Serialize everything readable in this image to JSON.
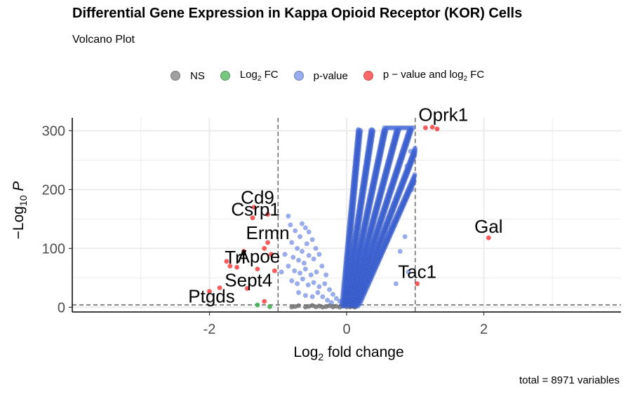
{
  "chart_data": {
    "type": "scatter",
    "title": "Differential Gene Expression in Kappa Opioid Receptor (KOR) Cells",
    "subtitle": "Volcano Plot",
    "caption": "total = 8971 variables",
    "xlabel": "Log2 fold change",
    "ylabel": "−Log10 P",
    "xlim": [
      -4,
      4
    ],
    "ylim": [
      -8,
      322
    ],
    "x_ticks": [
      -2,
      0,
      2
    ],
    "y_ticks": [
      0,
      100,
      200,
      300
    ],
    "x_cutoffs": [
      -1,
      1
    ],
    "y_cutoff": 4,
    "grid": true,
    "legend_position": "top",
    "series": [
      {
        "name": "NS",
        "color": "#808080"
      },
      {
        "name": "Log2 FC",
        "color": "#3cb04a"
      },
      {
        "name": "p-value",
        "color": "#4169e1"
      },
      {
        "name": "p − value and log2 FC",
        "color": "#ff0000"
      }
    ],
    "labeled_points": [
      {
        "gene": "Oprk1",
        "x": 1.15,
        "y": 305
      },
      {
        "gene": "Gal",
        "x": 2.07,
        "y": 118
      },
      {
        "gene": "Tac1",
        "x": 1.03,
        "y": 40
      },
      {
        "gene": "Cd9",
        "x": -1.35,
        "y": 170
      },
      {
        "gene": "Csrp1",
        "x": -1.37,
        "y": 152
      },
      {
        "gene": "Ermn",
        "x": -1.15,
        "y": 110
      },
      {
        "gene": "Apoe",
        "x": -1.3,
        "y": 65
      },
      {
        "gene": "Trf",
        "x": -1.6,
        "y": 68
      },
      {
        "gene": "Sept4",
        "x": -1.45,
        "y": 32
      },
      {
        "gene": "Ptgds",
        "x": -2.0,
        "y": 27
      }
    ],
    "red_points": [
      [
        1.15,
        305
      ],
      [
        1.25,
        306
      ],
      [
        1.32,
        303
      ],
      [
        2.07,
        118
      ],
      [
        1.03,
        40
      ],
      [
        -1.35,
        170
      ],
      [
        -1.37,
        152
      ],
      [
        -1.15,
        158
      ],
      [
        -1.15,
        110
      ],
      [
        -1.2,
        100
      ],
      [
        -1.5,
        95
      ],
      [
        -1.3,
        65
      ],
      [
        -1.6,
        68
      ],
      [
        -1.7,
        70
      ],
      [
        -1.75,
        78
      ],
      [
        -1.45,
        32
      ],
      [
        -2.0,
        27
      ],
      [
        -1.85,
        33
      ],
      [
        -1.2,
        10
      ],
      [
        -1.1,
        90
      ],
      [
        -1.05,
        62
      ]
    ],
    "green_points": [
      [
        -1.3,
        4
      ],
      [
        -1.12,
        1
      ]
    ],
    "gray_points": [
      [
        -0.8,
        0.5
      ],
      [
        -0.75,
        1.2
      ],
      [
        -0.6,
        0.4
      ],
      [
        -0.55,
        1.5
      ],
      [
        -0.45,
        0.8
      ],
      [
        -0.4,
        2.0
      ],
      [
        -0.35,
        0.3
      ],
      [
        -0.3,
        1.0
      ],
      [
        -0.25,
        2.5
      ],
      [
        -0.2,
        0.6
      ],
      [
        -0.15,
        1.8
      ],
      [
        -0.1,
        0.2
      ],
      [
        -0.05,
        2.2
      ],
      [
        0.0,
        1.0
      ],
      [
        0.05,
        0.5
      ],
      [
        0.08,
        2.8
      ],
      [
        -0.7,
        2.6
      ],
      [
        -0.5,
        3.0
      ],
      [
        0.1,
        1.4
      ],
      [
        0.12,
        0.3
      ]
    ],
    "blue_blob_left": [
      [
        -0.85,
        155
      ],
      [
        -0.82,
        140
      ],
      [
        -0.75,
        130
      ],
      [
        -0.68,
        120
      ],
      [
        -0.6,
        135
      ],
      [
        -0.55,
        128
      ],
      [
        -0.8,
        110
      ],
      [
        -0.72,
        100
      ],
      [
        -0.65,
        95
      ],
      [
        -0.58,
        108
      ],
      [
        -0.5,
        115
      ],
      [
        -0.45,
        100
      ],
      [
        -0.78,
        85
      ],
      [
        -0.7,
        80
      ],
      [
        -0.62,
        75
      ],
      [
        -0.55,
        88
      ],
      [
        -0.48,
        82
      ],
      [
        -0.4,
        90
      ],
      [
        -0.85,
        70
      ],
      [
        -0.76,
        62
      ],
      [
        -0.68,
        58
      ],
      [
        -0.6,
        65
      ],
      [
        -0.52,
        55
      ],
      [
        -0.44,
        60
      ],
      [
        -0.36,
        70
      ],
      [
        -0.3,
        55
      ],
      [
        -0.8,
        45
      ],
      [
        -0.72,
        40
      ],
      [
        -0.64,
        48
      ],
      [
        -0.56,
        38
      ],
      [
        -0.48,
        42
      ],
      [
        -0.4,
        35
      ],
      [
        -0.32,
        40
      ],
      [
        -0.25,
        30
      ],
      [
        -0.2,
        22
      ],
      [
        -0.15,
        15
      ],
      [
        -0.1,
        10
      ],
      [
        -0.05,
        6
      ],
      [
        -0.7,
        25
      ],
      [
        -0.6,
        20
      ],
      [
        -0.5,
        18
      ],
      [
        -0.42,
        25
      ],
      [
        -0.35,
        18
      ],
      [
        -0.28,
        12
      ],
      [
        -0.22,
        8
      ],
      [
        -0.9,
        90
      ],
      [
        -0.95,
        60
      ],
      [
        -0.65,
        142
      ]
    ]
  }
}
